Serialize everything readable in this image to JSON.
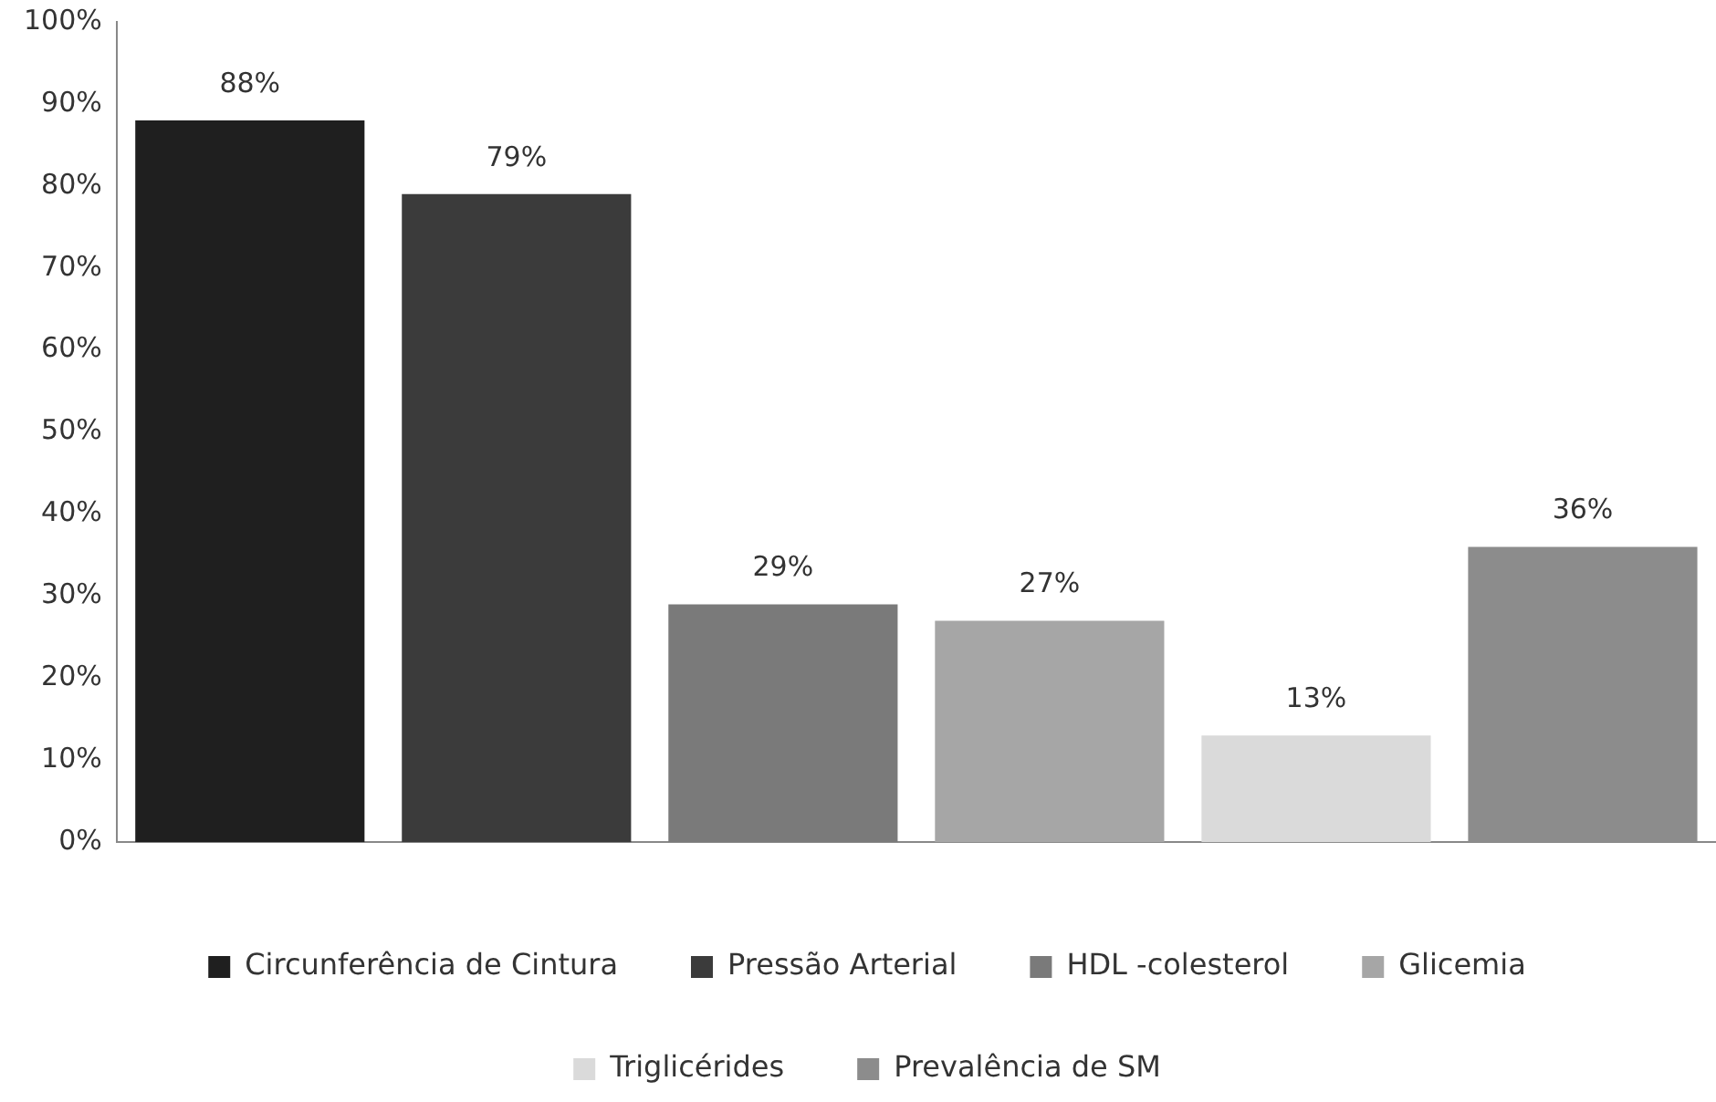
{
  "chart_data": {
    "type": "bar",
    "categories": [
      null,
      null,
      null,
      null,
      null,
      null
    ],
    "series": [
      {
        "name": "Circunferência de Cintura",
        "color": "#1f1f1f",
        "values": [
          88,
          null,
          null,
          null,
          null,
          null
        ],
        "value_labels": [
          "88%",
          null,
          null,
          null,
          null,
          null
        ]
      },
      {
        "name": "Pressão Arterial",
        "color": "#3b3b3b",
        "values": [
          null,
          79,
          null,
          null,
          null,
          null
        ],
        "value_labels": [
          null,
          "79%",
          null,
          null,
          null,
          null
        ]
      },
      {
        "name": "HDL -colesterol",
        "color": "#7a7a7a",
        "values": [
          null,
          null,
          29,
          null,
          null,
          null
        ],
        "value_labels": [
          null,
          null,
          "29%",
          null,
          null,
          null
        ]
      },
      {
        "name": "Glicemia",
        "color": "#a6a6a6",
        "values": [
          null,
          null,
          null,
          27,
          null,
          null
        ],
        "value_labels": [
          null,
          null,
          null,
          "27%",
          null,
          null
        ]
      },
      {
        "name": "Triglicérides",
        "color": "#dadada",
        "values": [
          null,
          null,
          null,
          null,
          13,
          null
        ],
        "value_labels": [
          null,
          null,
          null,
          null,
          "13%",
          null
        ]
      },
      {
        "name": "Prevalência de SM",
        "color": "#8c8c8c",
        "values": [
          null,
          null,
          null,
          null,
          null,
          36
        ],
        "value_labels": [
          null,
          null,
          null,
          null,
          null,
          "36%"
        ]
      }
    ],
    "ylim": [
      0,
      100
    ],
    "yticks": [
      {
        "value": 0,
        "label": "0%"
      },
      {
        "value": 10,
        "label": "10%"
      },
      {
        "value": 20,
        "label": "20%"
      },
      {
        "value": 30,
        "label": "30%"
      },
      {
        "value": 40,
        "label": "40%"
      },
      {
        "value": 50,
        "label": "50%"
      },
      {
        "value": 60,
        "label": "60%"
      },
      {
        "value": 70,
        "label": "70%"
      },
      {
        "value": 80,
        "label": "80%"
      },
      {
        "value": 90,
        "label": "90%"
      },
      {
        "value": 100,
        "label": "100%"
      }
    ],
    "grid": false,
    "legend": "bottom"
  }
}
